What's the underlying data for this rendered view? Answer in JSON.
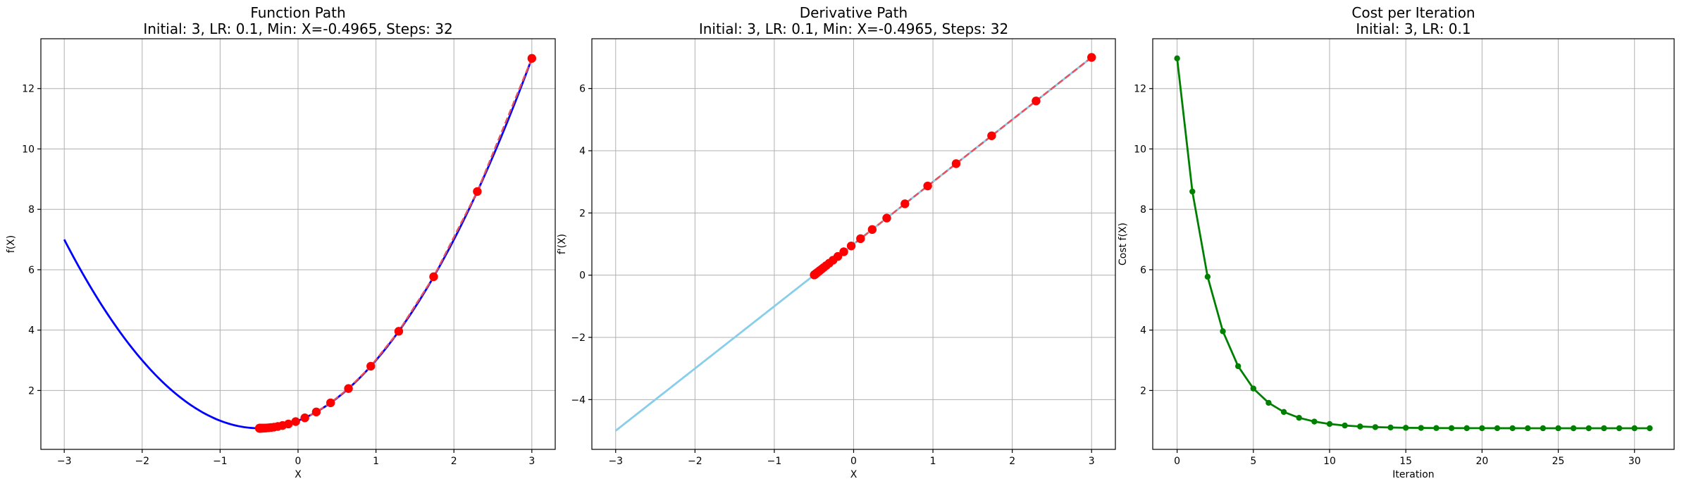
{
  "chart_data": [
    {
      "type": "line",
      "title": "Function Path",
      "subtitle": "Initial: 3, LR: 0.1, Min: X=-0.4965, Steps: 32",
      "xlabel": "X",
      "ylabel": "f(X)",
      "xlim": [
        -3.3,
        3.3
      ],
      "ylim": [
        0.05,
        13.65
      ],
      "xticks": [
        -3,
        -2,
        -1,
        0,
        1,
        2,
        3
      ],
      "yticks": [
        2,
        4,
        6,
        8,
        10,
        12
      ],
      "grid": true,
      "curve": {
        "formula": "x^2 + x + 1",
        "domain": [
          -3,
          3
        ],
        "color": "#0000ff"
      },
      "path": {
        "color": "#ff0000",
        "line_color": "#e8515c",
        "x": [
          3,
          2.3,
          1.74,
          1.292,
          0.9336,
          0.6469,
          0.4175,
          0.234,
          0.0872,
          -0.0302,
          -0.1242,
          -0.1993,
          -0.2595,
          -0.3076,
          -0.3461,
          -0.3769,
          -0.4015,
          -0.4212,
          -0.437,
          -0.4496,
          -0.4597,
          -0.4677,
          -0.4742,
          -0.4794,
          -0.4835,
          -0.4868,
          -0.4894,
          -0.4915,
          -0.4932,
          -0.4946,
          -0.4956,
          -0.4965
        ],
        "y": [
          13.0,
          8.59,
          5.768,
          3.961,
          2.805,
          2.065,
          1.592,
          1.289,
          1.095,
          0.971,
          0.891,
          0.84,
          0.808,
          0.787,
          0.774,
          0.765,
          0.76,
          0.756,
          0.754,
          0.753,
          0.752,
          0.751,
          0.751,
          0.7504,
          0.7503,
          0.7502,
          0.7501,
          0.7501,
          0.75,
          0.75,
          0.75,
          0.75
        ]
      }
    },
    {
      "type": "line",
      "title": "Derivative Path",
      "subtitle": "Initial: 3, LR: 0.1, Min: X=-0.4965, Steps: 32",
      "xlabel": "X",
      "ylabel": "f'(X)",
      "xlim": [
        -3.3,
        3.3
      ],
      "ylim": [
        -5.6,
        7.6
      ],
      "xticks": [
        -3,
        -2,
        -1,
        0,
        1,
        2,
        3
      ],
      "yticks": [
        -4,
        -2,
        0,
        2,
        4,
        6
      ],
      "grid": true,
      "curve": {
        "formula": "2x + 1",
        "domain": [
          -3,
          3
        ],
        "color": "#87ceeb"
      },
      "path": {
        "color": "#ff0000",
        "line_color": "#e8515c",
        "x": [
          3,
          2.3,
          1.74,
          1.292,
          0.9336,
          0.6469,
          0.4175,
          0.234,
          0.0872,
          -0.0302,
          -0.1242,
          -0.1993,
          -0.2595,
          -0.3076,
          -0.3461,
          -0.3769,
          -0.4015,
          -0.4212,
          -0.437,
          -0.4496,
          -0.4597,
          -0.4677,
          -0.4742,
          -0.4794,
          -0.4835,
          -0.4868,
          -0.4894,
          -0.4915,
          -0.4932,
          -0.4946,
          -0.4956,
          -0.4965
        ],
        "y": [
          7.0,
          5.6,
          4.48,
          3.584,
          2.867,
          2.294,
          1.835,
          1.468,
          1.174,
          0.94,
          0.752,
          0.601,
          0.481,
          0.385,
          0.308,
          0.246,
          0.197,
          0.158,
          0.126,
          0.101,
          0.081,
          0.065,
          0.052,
          0.041,
          0.033,
          0.026,
          0.021,
          0.017,
          0.014,
          0.011,
          0.009,
          0.007
        ]
      }
    },
    {
      "type": "line",
      "title": "Cost per Iteration",
      "subtitle": "Initial: 3, LR: 0.1",
      "xlabel": "Iteration",
      "ylabel": "Cost f(X)",
      "xlim": [
        -1.6,
        32.6
      ],
      "ylim": [
        0.05,
        13.65
      ],
      "xticks": [
        0,
        5,
        10,
        15,
        20,
        25,
        30
      ],
      "yticks": [
        2,
        4,
        6,
        8,
        10,
        12
      ],
      "grid": true,
      "series": [
        {
          "color": "#008000",
          "x": [
            0,
            1,
            2,
            3,
            4,
            5,
            6,
            7,
            8,
            9,
            10,
            11,
            12,
            13,
            14,
            15,
            16,
            17,
            18,
            19,
            20,
            21,
            22,
            23,
            24,
            25,
            26,
            27,
            28,
            29,
            30,
            31
          ],
          "values": [
            13.0,
            8.59,
            5.768,
            3.961,
            2.805,
            2.065,
            1.592,
            1.289,
            1.095,
            0.971,
            0.891,
            0.84,
            0.808,
            0.787,
            0.774,
            0.765,
            0.76,
            0.756,
            0.754,
            0.753,
            0.752,
            0.751,
            0.751,
            0.7504,
            0.7503,
            0.7502,
            0.7501,
            0.7501,
            0.75,
            0.75,
            0.75,
            0.75
          ]
        }
      ]
    }
  ]
}
